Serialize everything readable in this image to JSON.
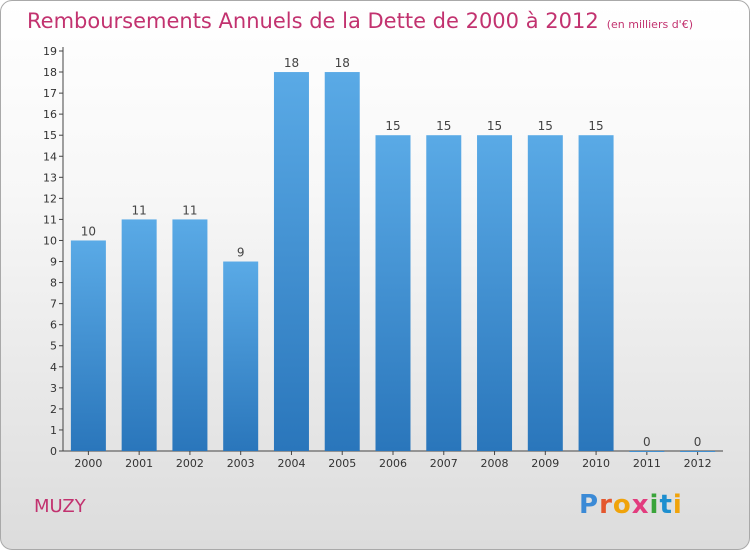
{
  "title": "Remboursements Annuels de la Dette de 2000 à 2012",
  "unit_note": "(en milliers d'€)",
  "commune": "MUZY",
  "logo": "Proxiti",
  "colors": {
    "bar_top": "#5aaae6",
    "bar_bottom": "#2a76bb",
    "title": "#c2326f"
  },
  "chart_data": {
    "type": "bar",
    "title": "Remboursements Annuels de la Dette de 2000 à 2012",
    "categories": [
      "2000",
      "2001",
      "2002",
      "2003",
      "2004",
      "2005",
      "2006",
      "2007",
      "2008",
      "2009",
      "2010",
      "2011",
      "2012"
    ],
    "values": [
      10,
      11,
      11,
      9,
      18,
      18,
      15,
      15,
      15,
      15,
      15,
      0,
      0
    ],
    "ylim": [
      0,
      19
    ],
    "yticks": [
      0,
      1,
      2,
      3,
      4,
      5,
      6,
      7,
      8,
      9,
      10,
      11,
      12,
      13,
      14,
      15,
      16,
      17,
      18,
      19
    ],
    "grid": false,
    "legend": "none"
  }
}
